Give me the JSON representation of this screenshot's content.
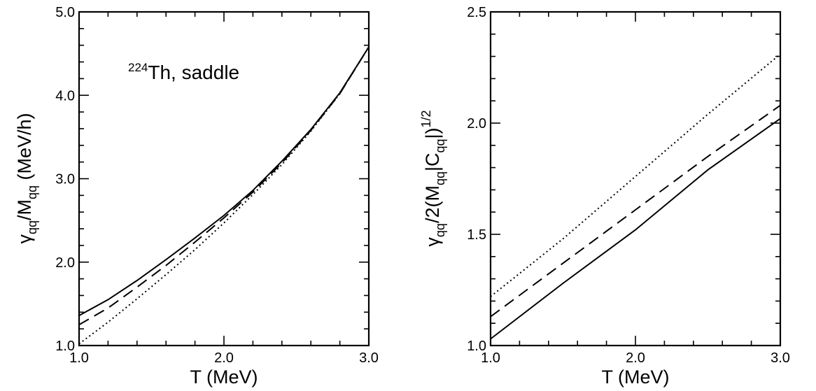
{
  "chart_data": [
    {
      "type": "line",
      "xlabel": "T  (MeV)",
      "ylabel": "γ_qq / M_qq   (MeV/h)",
      "annotation": "224Th,  saddle",
      "xlim": [
        1.0,
        3.0
      ],
      "ylim": [
        1.0,
        5.0
      ],
      "xticks": [
        "1.0",
        "2.0",
        "3.0"
      ],
      "yticks": [
        "1.0",
        "2.0",
        "3.0",
        "4.0",
        "5.0"
      ],
      "series": [
        {
          "style": "solid",
          "x": [
            1.0,
            1.2,
            1.4,
            1.6,
            1.8,
            2.0,
            2.2,
            2.4,
            2.6,
            2.8,
            3.0
          ],
          "y": [
            1.36,
            1.55,
            1.78,
            2.03,
            2.29,
            2.56,
            2.86,
            3.21,
            3.59,
            4.03,
            4.58
          ]
        },
        {
          "style": "dashed",
          "x": [
            1.0,
            1.2,
            1.4,
            1.6,
            1.8,
            2.0,
            2.2,
            2.4,
            2.6,
            2.8,
            3.0
          ],
          "y": [
            1.25,
            1.45,
            1.7,
            1.96,
            2.24,
            2.53,
            2.84,
            3.19,
            3.58,
            4.02,
            4.58
          ]
        },
        {
          "style": "dotted",
          "x": [
            1.0,
            1.2,
            1.4,
            1.6,
            1.8,
            2.0,
            2.2,
            2.4,
            2.6,
            2.8,
            3.0
          ],
          "y": [
            1.02,
            1.28,
            1.56,
            1.85,
            2.15,
            2.47,
            2.81,
            3.17,
            3.57,
            4.02,
            4.58
          ]
        }
      ]
    },
    {
      "type": "line",
      "xlabel": "T  (MeV)",
      "ylabel": "γ_qq / 2(M_qq|C_qq|)^1/2",
      "xlim": [
        1.0,
        3.0
      ],
      "ylim": [
        1.0,
        2.5
      ],
      "xticks": [
        "1.0",
        "2.0",
        "3.0"
      ],
      "yticks": [
        "1.0",
        "1.5",
        "2.0",
        "2.5"
      ],
      "series": [
        {
          "style": "solid",
          "x": [
            1.0,
            1.5,
            2.0,
            2.5,
            3.0
          ],
          "y": [
            1.03,
            1.28,
            1.52,
            1.79,
            2.02
          ]
        },
        {
          "style": "dashed",
          "x": [
            1.0,
            1.5,
            2.0,
            2.5,
            3.0
          ],
          "y": [
            1.13,
            1.37,
            1.61,
            1.85,
            2.08
          ]
        },
        {
          "style": "dotted",
          "x": [
            1.0,
            1.5,
            2.0,
            2.5,
            3.0
          ],
          "y": [
            1.22,
            1.48,
            1.76,
            2.04,
            2.31
          ]
        }
      ]
    }
  ]
}
